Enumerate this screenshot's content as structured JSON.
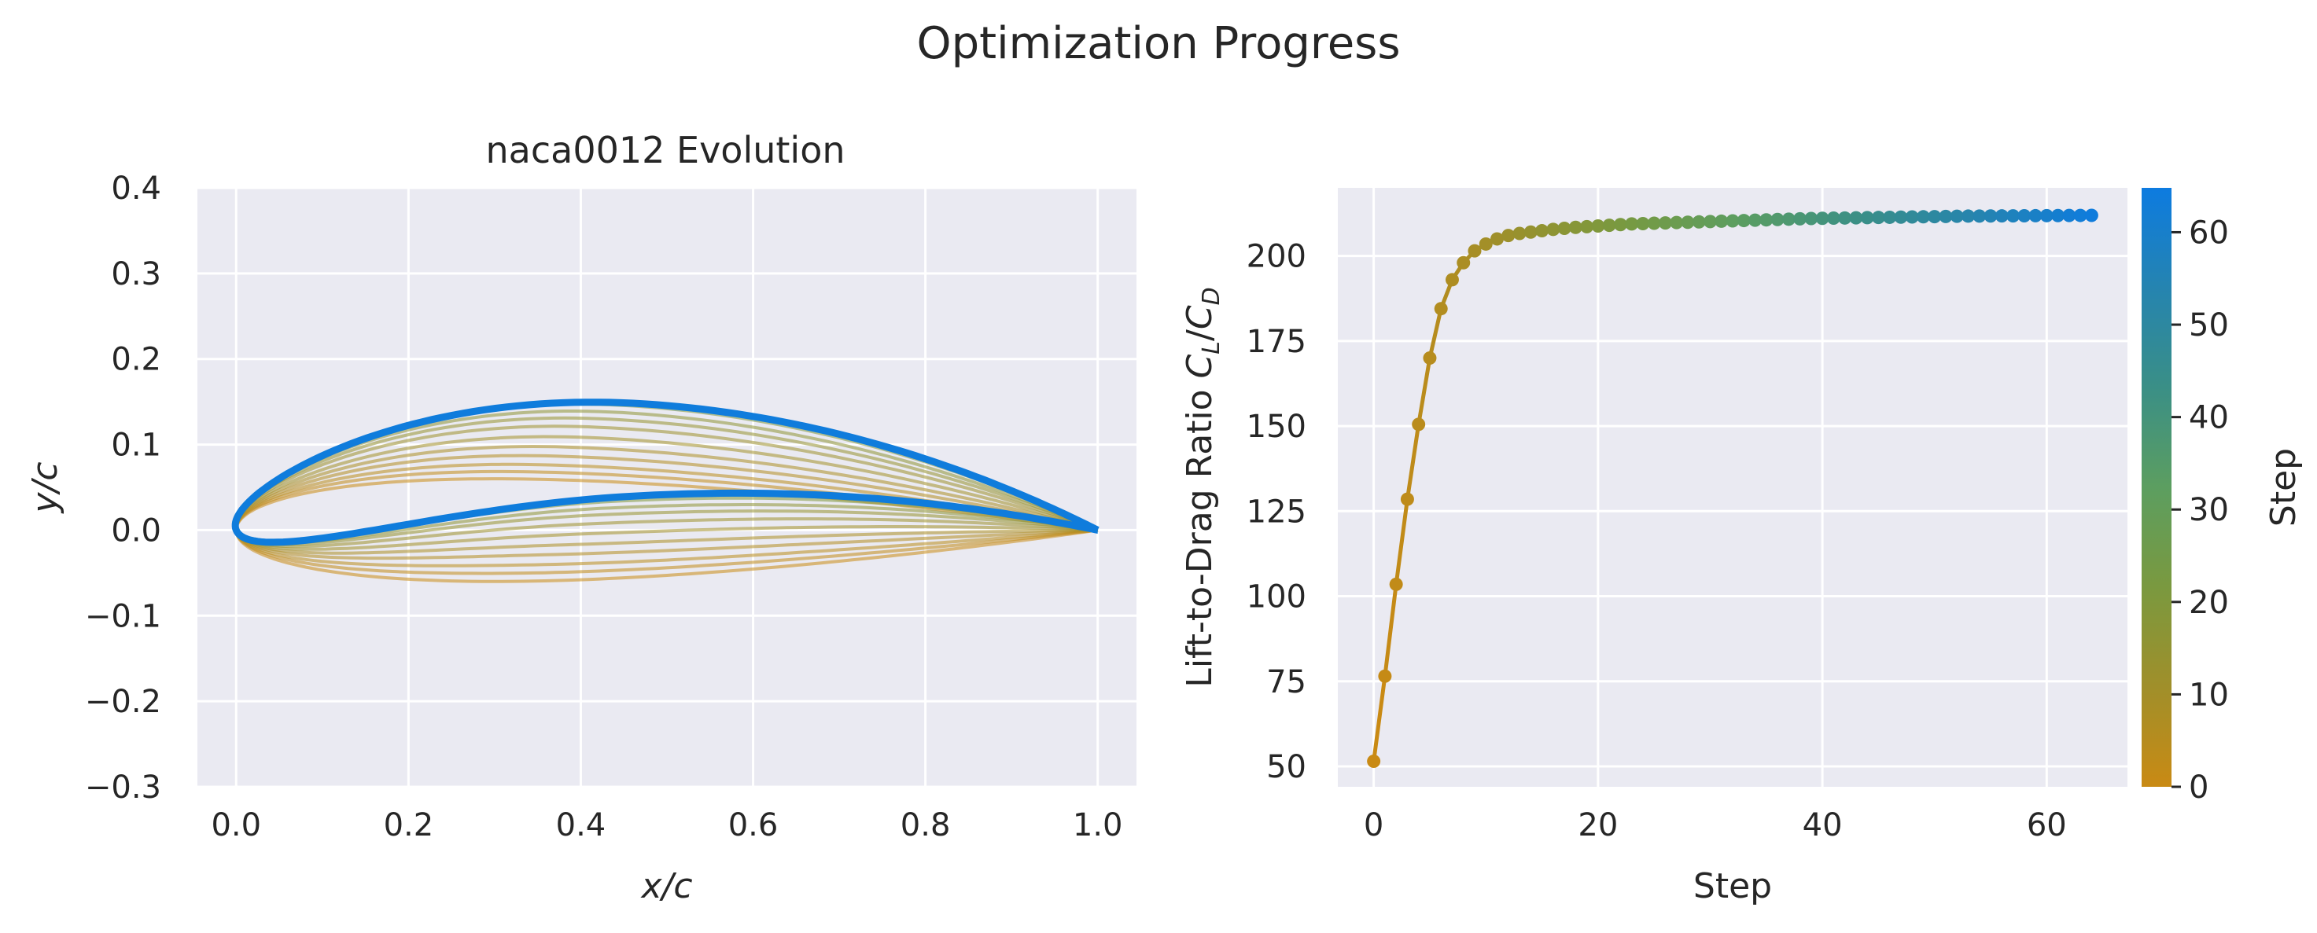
{
  "figure": {
    "title": "Optimization Progress"
  },
  "chart_data": [
    {
      "type": "line",
      "title": "naca0012 Evolution",
      "xlabel": "x/c",
      "ylabel": "y/c",
      "xlim": [
        -0.045,
        1.045
      ],
      "ylim": [
        -0.3,
        0.4
      ],
      "x_ticks": [
        "0.0",
        "0.2",
        "0.4",
        "0.6",
        "0.8",
        "1.0"
      ],
      "y_ticks": [
        "0.4",
        "0.3",
        "0.2",
        "0.1",
        "0.0",
        "−0.1",
        "−0.2",
        "−0.3"
      ],
      "grid": true,
      "series_description": "Airfoil shapes, one per optimization step, coloured by step",
      "shape_series": [
        {
          "step": 0,
          "camber": 0.0,
          "thickness": 0.12,
          "camber_pos": 0.3
        },
        {
          "step": 2,
          "camber": 0.009,
          "thickness": 0.119,
          "camber_pos": 0.32
        },
        {
          "step": 4,
          "camber": 0.018,
          "thickness": 0.118,
          "camber_pos": 0.34
        },
        {
          "step": 6,
          "camber": 0.029,
          "thickness": 0.117,
          "camber_pos": 0.36
        },
        {
          "step": 8,
          "camber": 0.04,
          "thickness": 0.117,
          "camber_pos": 0.38
        },
        {
          "step": 10,
          "camber": 0.052,
          "thickness": 0.117,
          "camber_pos": 0.4
        },
        {
          "step": 12,
          "camber": 0.064,
          "thickness": 0.118,
          "camber_pos": 0.41
        },
        {
          "step": 14,
          "camber": 0.074,
          "thickness": 0.118,
          "camber_pos": 0.42
        },
        {
          "step": 16,
          "camber": 0.082,
          "thickness": 0.119,
          "camber_pos": 0.43
        },
        {
          "step": 20,
          "camber": 0.09,
          "thickness": 0.12,
          "camber_pos": 0.44
        },
        {
          "step": 40,
          "camber": 0.093,
          "thickness": 0.12,
          "camber_pos": 0.45
        },
        {
          "step": 64,
          "camber": 0.094,
          "thickness": 0.118,
          "camber_pos": 0.46
        }
      ]
    },
    {
      "type": "scatter",
      "title": "",
      "xlabel": "Step",
      "ylabel": "Lift-to-Drag Ratio C_L/C_D",
      "xlim": [
        -3.2,
        67.2
      ],
      "ylim": [
        44,
        220
      ],
      "x_ticks": [
        0,
        20,
        40,
        60
      ],
      "y_ticks": [
        50,
        75,
        100,
        125,
        150,
        175,
        200
      ],
      "grid": true,
      "x": [
        0,
        1,
        2,
        3,
        4,
        5,
        6,
        7,
        8,
        9,
        10,
        11,
        12,
        13,
        14,
        15,
        16,
        17,
        18,
        19,
        20,
        21,
        22,
        23,
        24,
        25,
        26,
        27,
        28,
        29,
        30,
        31,
        32,
        33,
        34,
        35,
        36,
        37,
        38,
        39,
        40,
        41,
        42,
        43,
        44,
        45,
        46,
        47,
        48,
        49,
        50,
        51,
        52,
        53,
        54,
        55,
        56,
        57,
        58,
        59,
        60,
        61,
        62,
        63,
        64
      ],
      "values": [
        51.5,
        76.5,
        103.5,
        128.5,
        150.5,
        170.0,
        184.5,
        193.0,
        198.0,
        201.5,
        203.5,
        205.0,
        206.0,
        206.6,
        207.0,
        207.4,
        207.8,
        208.1,
        208.4,
        208.6,
        208.8,
        209.0,
        209.2,
        209.4,
        209.5,
        209.6,
        209.7,
        209.8,
        209.9,
        210.0,
        210.1,
        210.2,
        210.3,
        210.4,
        210.5,
        210.6,
        210.7,
        210.8,
        210.9,
        211.0,
        211.05,
        211.1,
        211.15,
        211.2,
        211.25,
        211.3,
        211.35,
        211.4,
        211.45,
        211.5,
        211.55,
        211.6,
        211.65,
        211.7,
        211.72,
        211.74,
        211.76,
        211.78,
        211.8,
        211.82,
        211.84,
        211.86,
        211.88,
        211.9,
        211.92
      ]
    }
  ],
  "colorbar": {
    "label": "Step",
    "range": [
      0,
      64.8
    ],
    "ticks": [
      0,
      10,
      20,
      30,
      40,
      50,
      60
    ],
    "colors": [
      "#c98a14",
      "#a08f2a",
      "#7a993f",
      "#5c9e60",
      "#3a8f86",
      "#2584b0",
      "#0d7be0"
    ]
  }
}
